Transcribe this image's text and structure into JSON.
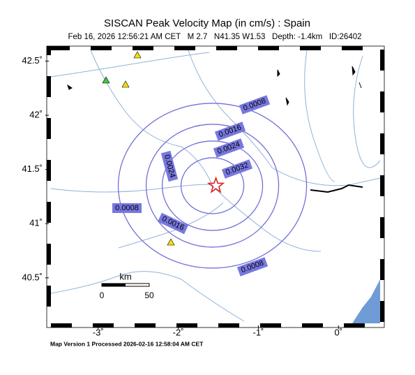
{
  "map_data": {
    "title": "SISCAN Peak Velocity Map (in cm/s) : Spain",
    "subtitle": "Feb 16, 2026 12:56:21 AM CET   M 2.7   N41.35 W1.53   Depth: -1.4km   ID:26402",
    "xlim": [
      -3.59,
      0.52
    ],
    "ylim": [
      40.08,
      42.6
    ],
    "xticks": [
      {
        "value": -3,
        "label": "-3˚"
      },
      {
        "value": -2,
        "label": "-2˚"
      },
      {
        "value": -1,
        "label": "-1˚"
      },
      {
        "value": 0,
        "label": "0˚"
      }
    ],
    "yticks": [
      {
        "value": 42.5,
        "label": "42.5˚"
      },
      {
        "value": 42,
        "label": "42˚"
      },
      {
        "value": 41.5,
        "label": "41.5˚"
      },
      {
        "value": 41,
        "label": "41˚"
      },
      {
        "value": 40.5,
        "label": "40.5˚"
      }
    ],
    "epicenter": {
      "lon": -1.53,
      "lat": 41.35
    },
    "contour_labels": [
      "0.0008",
      "0.0016",
      "0.0024",
      "0.0032",
      "0.0024",
      "0.0008",
      "0.0016",
      "0.0008"
    ],
    "scale": {
      "unit": "km",
      "start": "0",
      "end": "50"
    },
    "footer": "Map Version 1 Processed 2026-02-16 12:58:04 AM CET"
  }
}
